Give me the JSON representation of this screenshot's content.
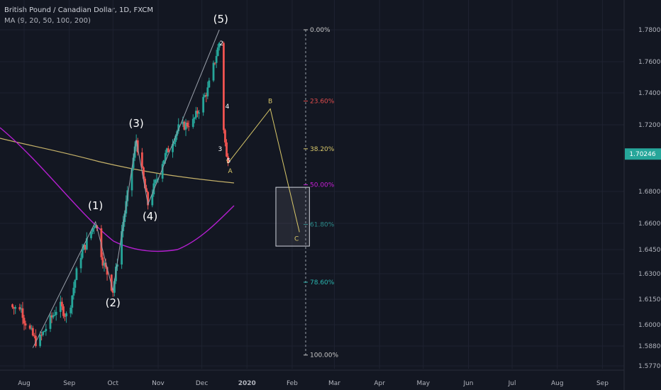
{
  "header": {
    "title": "British Pound / Canadian Dollar, 1D, FXCM",
    "indicator": "MA (9, 20, 50, 100, 200)"
  },
  "colors": {
    "background": "#131722",
    "grid": "#1e2230",
    "up_candle": "#26a69a",
    "down_candle": "#ef5350",
    "ma_slow": "#c7b36a",
    "ma_fast": "#b51fd1",
    "wave_line": "#9aa0ab",
    "projection": "#d9c86a",
    "price_badge": "#26a69a"
  },
  "chart_data": {
    "type": "candlestick",
    "x_axis_labels": [
      "Aug",
      "Sep",
      "Oct",
      "Nov",
      "Dec",
      "2020",
      "Feb",
      "Mar",
      "Apr",
      "May",
      "Jun",
      "Jul",
      "Aug",
      "Sep"
    ],
    "y_axis_labels": [
      "1.78000",
      "1.76000",
      "1.74000",
      "1.72000",
      "1.68000",
      "1.66000",
      "1.64500",
      "1.63000",
      "1.61500",
      "1.60000",
      "1.58800",
      "1.57700"
    ],
    "y_axis_ticks": [
      {
        "label": "1.78000",
        "value": 1.78
      },
      {
        "label": "1.76000",
        "value": 1.76
      },
      {
        "label": "1.74000",
        "value": 1.74
      },
      {
        "label": "1.72000",
        "value": 1.72
      },
      {
        "label": "1.68000",
        "value": 1.68
      },
      {
        "label": "1.66000",
        "value": 1.66
      },
      {
        "label": "1.64500",
        "value": 1.645
      },
      {
        "label": "1.63000",
        "value": 1.63
      },
      {
        "label": "1.61500",
        "value": 1.615
      },
      {
        "label": "1.60000",
        "value": 1.6
      },
      {
        "label": "1.58800",
        "value": 1.588
      },
      {
        "label": "1.57700",
        "value": 1.577
      }
    ],
    "current_price": {
      "label": "1.70246",
      "value": 1.70246
    },
    "elliott_waves": [
      {
        "label": "(1)",
        "date": "2019-09-19",
        "price": 1.661
      },
      {
        "label": "(2)",
        "date": "2019-10-01",
        "price": 1.62
      },
      {
        "label": "(3)",
        "date": "2019-10-17",
        "price": 1.711
      },
      {
        "label": "(4)",
        "date": "2019-10-25",
        "price": 1.672
      },
      {
        "label": "(5)",
        "date": "2019-12-13",
        "price": 1.78
      }
    ],
    "sub_waves": [
      {
        "label": "2",
        "date": "2019-12-13",
        "price": 1.772
      },
      {
        "label": "4",
        "date": "2019-12-17",
        "price": 1.732
      },
      {
        "label": "3",
        "date": "2019-12-16",
        "price": 1.706
      },
      {
        "label": "5",
        "date": "2019-12-18",
        "price": 1.699
      }
    ],
    "projection": [
      {
        "label": "A",
        "date": "2019-12-19",
        "price": 1.697
      },
      {
        "label": "B",
        "date": "2020-01-17",
        "price": 1.73
      },
      {
        "label": "C",
        "date": "2020-02-06",
        "price": 1.655
      }
    ],
    "fibonacci": [
      {
        "label": "0.00%",
        "price": 1.78,
        "color": "#c8c8c8"
      },
      {
        "label": "23.60%",
        "price": 1.7349,
        "color": "#e04c4c"
      },
      {
        "label": "38.20%",
        "price": 1.7056,
        "color": "#d9c86a"
      },
      {
        "label": "50.00%",
        "price": 1.684,
        "color": "#c81ed8"
      },
      {
        "label": "61.80%",
        "price": 1.6594,
        "color": "#2a8a8a"
      },
      {
        "label": "78.60%",
        "price": 1.625,
        "color": "#2ab6b0"
      },
      {
        "label": "100.00%",
        "price": 1.583,
        "color": "#c8c8c8"
      }
    ],
    "target_box": {
      "date_start": "2020-02-02",
      "date_end": "2020-02-08",
      "price_top": 1.6825,
      "price_bottom": 1.647
    }
  }
}
